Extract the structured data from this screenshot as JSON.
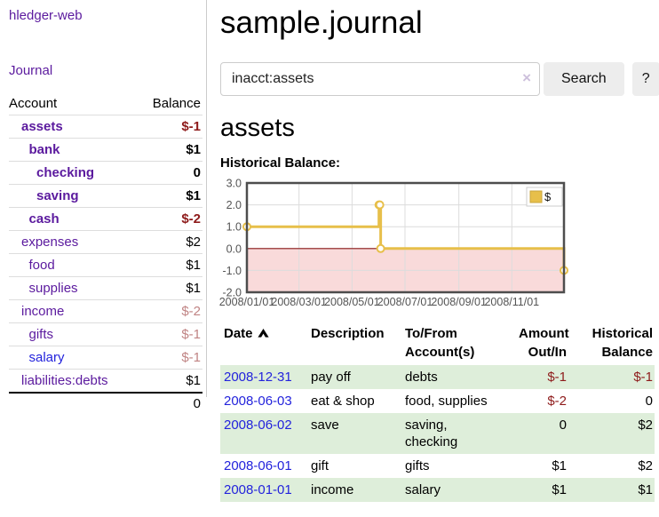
{
  "colors": {
    "link_purple": "#5b1a9e",
    "link_blue": "#2323dc",
    "negative_red": "#8e1b1b",
    "negative_muted_red": "#c08484",
    "row_stripe_green": "#deeeda",
    "series_gold": "#e7bf4a",
    "chart_border_gray": "#4d4d4d",
    "button_gray": "#ededed"
  },
  "sidebar": {
    "app_title": "hledger-web",
    "journal_link": "Journal",
    "accounts_header": {
      "account": "Account",
      "balance": "Balance"
    },
    "accounts": [
      {
        "name": "assets",
        "level": 1,
        "bold": true,
        "balance": "$-1",
        "balance_style": "neg"
      },
      {
        "name": "bank",
        "level": 2,
        "bold": true,
        "balance": "$1",
        "balance_style": "pos"
      },
      {
        "name": "checking",
        "level": 3,
        "bold": true,
        "balance": "0",
        "balance_style": "pos"
      },
      {
        "name": "saving",
        "level": 3,
        "bold": true,
        "balance": "$1",
        "balance_style": "pos"
      },
      {
        "name": "cash",
        "level": 2,
        "bold": true,
        "balance": "$-2",
        "balance_style": "neg"
      },
      {
        "name": "expenses",
        "level": 1,
        "bold": false,
        "balance": "$2",
        "balance_style": "pos"
      },
      {
        "name": "food",
        "level": 2,
        "bold": false,
        "balance": "$1",
        "balance_style": "pos"
      },
      {
        "name": "supplies",
        "level": 2,
        "bold": false,
        "balance": "$1",
        "balance_style": "pos"
      },
      {
        "name": "income",
        "level": 1,
        "bold": false,
        "balance": "$-2",
        "balance_style": "negmuted"
      },
      {
        "name": "gifts",
        "level": 2,
        "bold": false,
        "balance": "$-1",
        "balance_style": "negmuted"
      },
      {
        "name": "salary",
        "level": 2,
        "bold": false,
        "balance": "$-1",
        "balance_style": "negmuted",
        "link_color": "blue"
      },
      {
        "name": "liabilities:debts",
        "level": 1,
        "bold": false,
        "balance": "$1",
        "balance_style": "pos"
      }
    ],
    "total": "0"
  },
  "header": {
    "title": "sample.journal"
  },
  "search": {
    "value": "inacct:assets",
    "clear_icon": "×",
    "search_button": "Search",
    "help_button": "?"
  },
  "account_page": {
    "heading": "assets",
    "chart_title": "Historical Balance:"
  },
  "chart_data": {
    "type": "line",
    "step": true,
    "title": "Historical Balance",
    "ylim": [
      -2,
      3
    ],
    "y_ticks": [
      3.0,
      2.0,
      1.0,
      0.0,
      -1.0,
      -2.0
    ],
    "x_range": [
      "2008-01-01",
      "2008-12-31"
    ],
    "x_tick_labels": [
      "2008/01/01",
      "2008/03/01",
      "2008/05/01",
      "2008/07/01",
      "2008/09/01",
      "2008/11/01"
    ],
    "grid": true,
    "legend": {
      "label": "$",
      "position": "top-right"
    },
    "series": [
      {
        "name": "$",
        "color": "#e7bf4a",
        "points": [
          {
            "date": "2008-01-01",
            "value": 1
          },
          {
            "date": "2008-06-01",
            "value": 2
          },
          {
            "date": "2008-06-02",
            "value": 2
          },
          {
            "date": "2008-06-03",
            "value": 0
          },
          {
            "date": "2008-12-31",
            "value": -1
          }
        ]
      }
    ],
    "negative_region_color": "#f9dada",
    "zero_line_color": "#8b1a1a",
    "grid_color": "#dcdcdc",
    "border_color": "#4d4d4d"
  },
  "register": {
    "columns": [
      {
        "lines": [
          "Date"
        ],
        "sort": "asc"
      },
      {
        "lines": [
          "Description"
        ]
      },
      {
        "lines": [
          "To/From",
          "Account(s)"
        ]
      },
      {
        "lines": [
          "Amount",
          "Out/In"
        ],
        "align": "right"
      },
      {
        "lines": [
          "Historical",
          "Balance"
        ],
        "align": "right"
      }
    ],
    "rows": [
      {
        "date": "2008-12-31",
        "description": "pay off",
        "accounts": "debts",
        "amount": "$-1",
        "amount_neg": true,
        "balance": "$-1",
        "balance_neg": true
      },
      {
        "date": "2008-06-03",
        "description": "eat & shop",
        "accounts": "food, supplies",
        "amount": "$-2",
        "amount_neg": true,
        "balance": "0",
        "balance_neg": false
      },
      {
        "date": "2008-06-02",
        "description": "save",
        "accounts": "saving, checking",
        "amount": "0",
        "amount_neg": false,
        "balance": "$2",
        "balance_neg": false
      },
      {
        "date": "2008-06-01",
        "description": "gift",
        "accounts": "gifts",
        "amount": "$1",
        "amount_neg": false,
        "balance": "$2",
        "balance_neg": false
      },
      {
        "date": "2008-01-01",
        "description": "income",
        "accounts": "salary",
        "amount": "$1",
        "amount_neg": false,
        "balance": "$1",
        "balance_neg": false
      }
    ]
  }
}
